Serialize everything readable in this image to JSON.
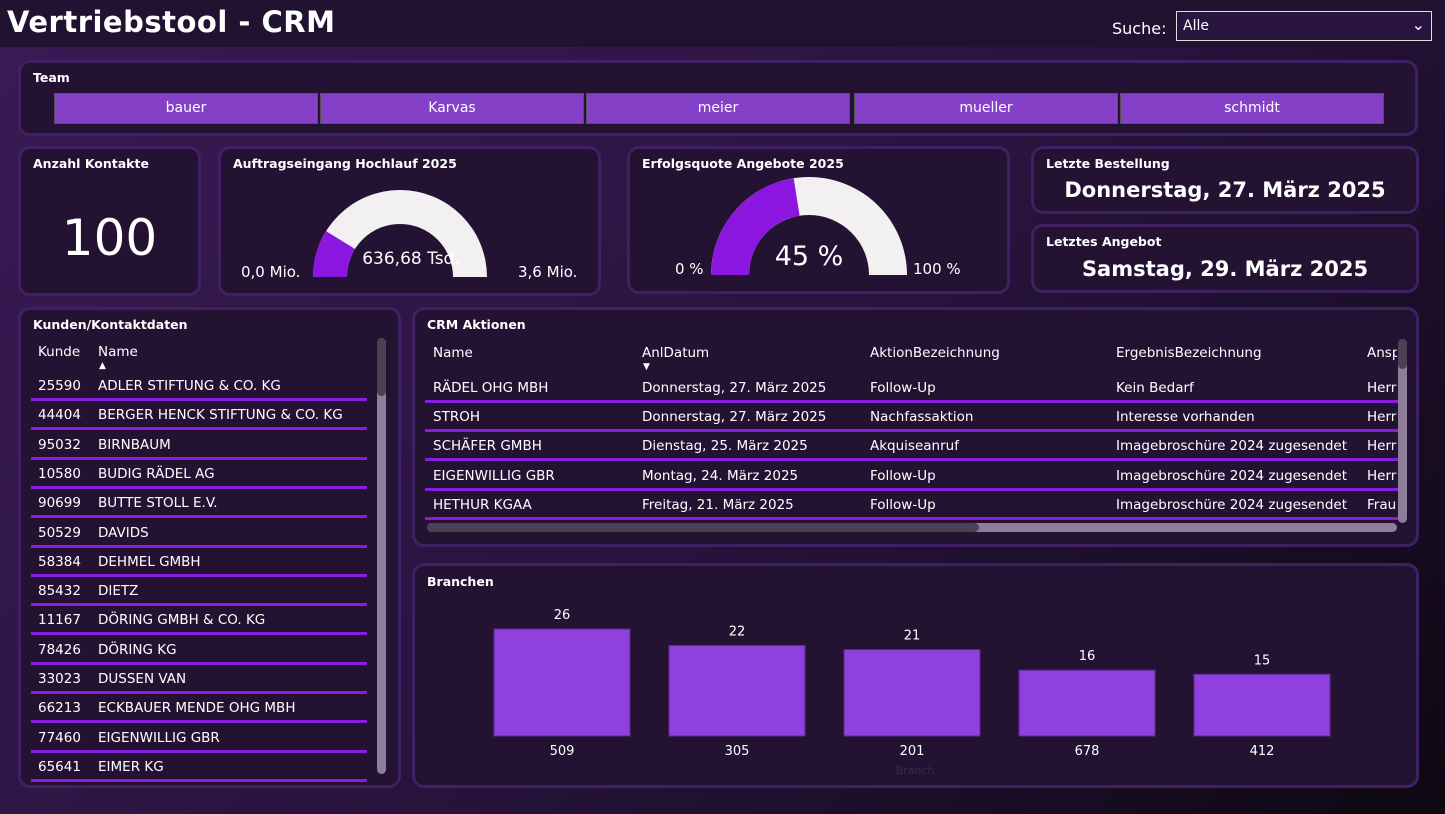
{
  "header": {
    "title": "Vertriebstool - CRM",
    "search_label": "Suche:",
    "search_value": "Alle"
  },
  "team": {
    "title": "Team",
    "members": [
      "bauer",
      "Karvas",
      "meier",
      "mueller",
      "schmidt"
    ]
  },
  "kpi_kontakte": {
    "title": "Anzahl Kontakte",
    "value": "100"
  },
  "gauge_auftrag": {
    "title": "Auftragseingang Hochlauf 2025",
    "value_label": "636,68 Tsd.",
    "min_label": "0,0 Mio.",
    "max_label": "3,6 Mio.",
    "fraction": 0.177
  },
  "gauge_quote": {
    "title": "Erfolgsquote Angebote 2025",
    "value_label": "45 %",
    "min_label": "0 %",
    "max_label": "100 %",
    "fraction": 0.45
  },
  "letzte_bestellung": {
    "title": "Letzte Bestellung",
    "value": "Donnerstag, 27. März 2025"
  },
  "letztes_angebot": {
    "title": "Letztes Angebot",
    "value": "Samstag, 29. März 2025"
  },
  "kunden": {
    "title": "Kunden/Kontaktdaten",
    "columns": [
      "Kunde",
      "Name"
    ],
    "rows": [
      [
        "25590",
        "ADLER STIFTUNG & CO. KG"
      ],
      [
        "44404",
        "BERGER HENCK STIFTUNG & CO. KG"
      ],
      [
        "95032",
        "BIRNBAUM"
      ],
      [
        "10580",
        "BUDIG RÄDEL AG"
      ],
      [
        "90699",
        "BUTTE STOLL E.V."
      ],
      [
        "50529",
        "DAVIDS"
      ],
      [
        "58384",
        "DEHMEL GMBH"
      ],
      [
        "85432",
        "DIETZ"
      ],
      [
        "11167",
        "DÖRING GMBH & CO. KG"
      ],
      [
        "78426",
        "DÖRING KG"
      ],
      [
        "33023",
        "DUSSEN VAN"
      ],
      [
        "66213",
        "ECKBAUER MENDE OHG MBH"
      ],
      [
        "77460",
        "EIGENWILLIG GBR"
      ],
      [
        "65641",
        "EIMER KG"
      ]
    ]
  },
  "crm": {
    "title": "CRM Aktionen",
    "columns": [
      "Name",
      "AnlDatum",
      "AktionBezeichnung",
      "ErgebnisBezeichnung",
      "Ansp"
    ],
    "rows": [
      [
        "RÄDEL OHG MBH",
        "Donnerstag, 27. März 2025",
        "Follow-Up",
        "Kein Bedarf",
        "Herr"
      ],
      [
        "STROH",
        "Donnerstag, 27. März 2025",
        "Nachfassaktion",
        "Interesse vorhanden",
        "Herr"
      ],
      [
        "SCHÄFER GMBH",
        "Dienstag, 25. März 2025",
        "Akquiseanruf",
        "Imagebroschüre 2024 zugesendet",
        "Herr"
      ],
      [
        "EIGENWILLIG GBR",
        "Montag, 24. März 2025",
        "Follow-Up",
        "Imagebroschüre 2024 zugesendet",
        "Herr"
      ],
      [
        "HETHUR KGAA",
        "Freitag, 21. März 2025",
        "Follow-Up",
        "Imagebroschüre 2024 zugesendet",
        "Frau"
      ]
    ]
  },
  "chart_data": {
    "type": "bar",
    "title": "Branchen",
    "categories": [
      "509",
      "305",
      "201",
      "678",
      "412"
    ],
    "values": [
      26,
      22,
      21,
      16,
      15
    ],
    "xlabel": "Branch",
    "ylabel": "",
    "ylim": [
      0,
      26
    ],
    "color": "#9040dc"
  }
}
